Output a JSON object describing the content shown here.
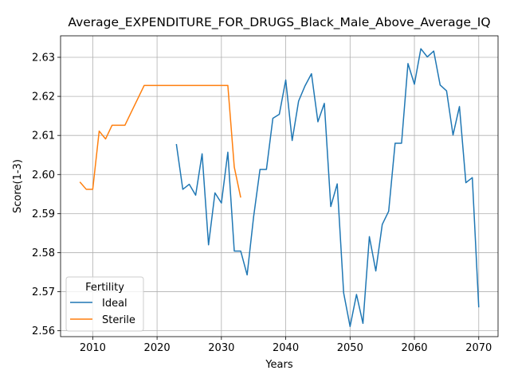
{
  "chart_data": {
    "type": "line",
    "title": "Average_EXPENDITURE_FOR_DRUGS_Black_Male_Above_Average_IQ",
    "xlabel": "Years",
    "ylabel": "Score(1-3)",
    "xlim": [
      2005,
      2073
    ],
    "ylim": [
      2.5585,
      2.6355
    ],
    "xticks": [
      2010,
      2020,
      2030,
      2040,
      2050,
      2060,
      2070
    ],
    "yticks": [
      2.56,
      2.57,
      2.58,
      2.59,
      2.6,
      2.61,
      2.62,
      2.63
    ],
    "ytick_labels": [
      "2.56",
      "2.57",
      "2.58",
      "2.59",
      "2.60",
      "2.61",
      "2.62",
      "2.63"
    ],
    "grid": true,
    "legend": {
      "title": "Fertility",
      "placement": "lower-left"
    },
    "series": [
      {
        "name": "Ideal",
        "color": "#1f77b4",
        "x": [
          2023,
          2024,
          2025,
          2026,
          2027,
          2028,
          2029,
          2030,
          2031,
          2032,
          2033,
          2034,
          2035,
          2036,
          2037,
          2038,
          2039,
          2040,
          2041,
          2042,
          2043,
          2044,
          2045,
          2046,
          2047,
          2048,
          2049,
          2050,
          2051,
          2052,
          2053,
          2054,
          2055,
          2056,
          2057,
          2058,
          2059,
          2060,
          2061,
          2062,
          2063,
          2064,
          2065,
          2066,
          2067,
          2068,
          2069,
          2070
        ],
        "y": [
          2.6078,
          2.5962,
          2.5975,
          2.5947,
          2.6053,
          2.582,
          2.5953,
          2.5927,
          2.6057,
          2.5804,
          2.5804,
          2.5743,
          2.5891,
          2.6013,
          2.6013,
          2.6144,
          2.6154,
          2.6242,
          2.6087,
          2.6188,
          2.6227,
          2.6258,
          2.6135,
          2.6182,
          2.5918,
          2.5976,
          2.5697,
          2.5611,
          2.5693,
          2.5619,
          2.5841,
          2.5753,
          2.5872,
          2.5906,
          2.608,
          2.608,
          2.6284,
          2.6231,
          2.6322,
          2.6301,
          2.6316,
          2.6229,
          2.6214,
          2.6101,
          2.6174,
          2.5979,
          2.5992,
          2.566
        ]
      },
      {
        "name": "Sterile",
        "color": "#ff7f0e",
        "x": [
          2008,
          2009,
          2010,
          2011,
          2012,
          2013,
          2014,
          2015,
          2016,
          2017,
          2018,
          2019,
          2020,
          2021,
          2022,
          2023,
          2024,
          2025,
          2026,
          2027,
          2028,
          2029,
          2030,
          2031,
          2032,
          2033
        ],
        "y": [
          2.5981,
          2.5962,
          2.5962,
          2.6111,
          2.6091,
          2.6126,
          2.6126,
          2.6126,
          2.616,
          2.6194,
          2.6228,
          2.6228,
          2.6228,
          2.6228,
          2.6228,
          2.6228,
          2.6228,
          2.6228,
          2.6228,
          2.6228,
          2.6228,
          2.6228,
          2.6228,
          2.6228,
          2.6019,
          2.5941
        ]
      }
    ]
  }
}
